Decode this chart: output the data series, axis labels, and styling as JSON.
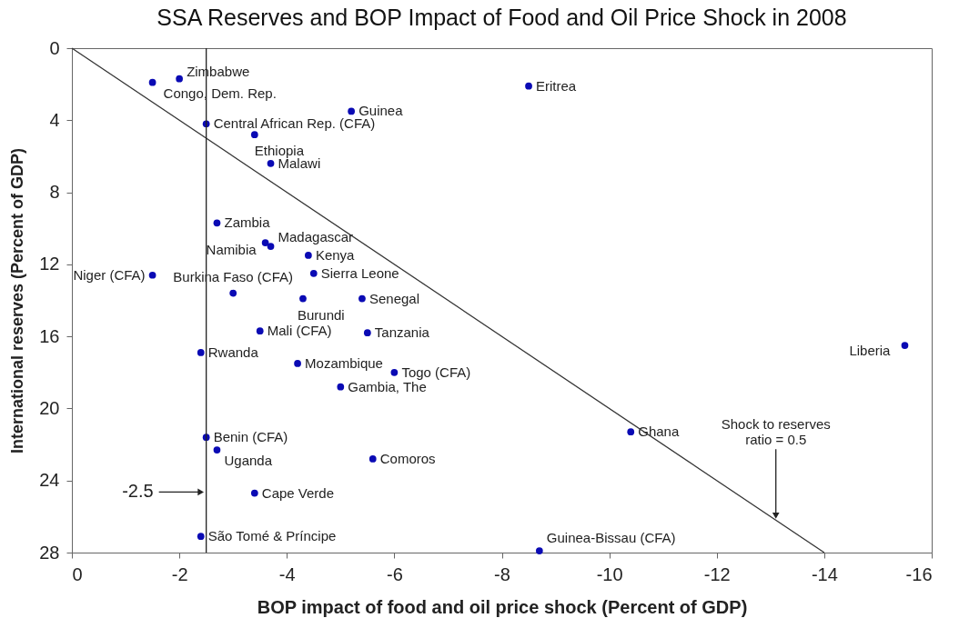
{
  "chart_data": {
    "type": "scatter",
    "title": "SSA Reserves and BOP Impact of Food and Oil Price Shock in 2008",
    "xlabel": "BOP impact of food and oil price shock (Percent of GDP)",
    "ylabel": "International reserves (Percent of GDP)",
    "xlim": [
      0,
      -16
    ],
    "xticks": [
      0,
      -2,
      -4,
      -6,
      -8,
      -10,
      -12,
      -14,
      -16
    ],
    "ylim": [
      28,
      0
    ],
    "yticks": [
      0,
      4,
      8,
      12,
      16,
      20,
      24,
      28
    ],
    "grid": false,
    "series": [
      {
        "type": "scatter",
        "marker": "circle",
        "color": "#0a0ab4",
        "x": [
          -2.0,
          -1.5,
          -8.5,
          -5.2,
          -2.5,
          -3.4,
          -3.7,
          -2.7,
          -3.7,
          -3.6,
          -4.4,
          -1.5,
          -3.0,
          -4.5,
          -4.3,
          -5.4,
          -3.5,
          -5.5,
          -2.4,
          -4.2,
          -6.0,
          -5.0,
          -2.5,
          -2.7,
          -5.6,
          -3.4,
          -2.4,
          -10.4,
          -15.5,
          -8.7
        ],
        "values": [
          1.7,
          1.9,
          2.1,
          3.5,
          4.2,
          4.8,
          6.4,
          9.7,
          11.0,
          10.8,
          11.5,
          12.6,
          13.6,
          12.5,
          13.9,
          13.9,
          15.7,
          15.8,
          16.9,
          17.5,
          18.0,
          18.8,
          21.6,
          22.3,
          22.8,
          24.7,
          27.1,
          21.3,
          16.5,
          27.9
        ],
        "value_labels": [
          "Zimbabwe",
          "Congo, Dem. Rep.",
          "Eritrea",
          "Guinea",
          "Central African Rep. (CFA)",
          "Ethiopia",
          "Malawi",
          "Zambia",
          "Madagascar",
          "Namibia",
          "Kenya",
          "Niger (CFA)",
          "Burkina Faso (CFA)",
          "Sierra Leone",
          "Burundi",
          "Senegal",
          "Mali (CFA)",
          "Tanzania",
          "Rwanda",
          "Mozambique",
          "Togo (CFA)",
          "Gambia, The",
          "Benin (CFA)",
          "Uganda",
          "Comoros",
          "Cape Verde",
          "São Tomé & Príncipe",
          "Ghana",
          "Liberia",
          "Guinea-Bissau (CFA)"
        ]
      },
      {
        "type": "line",
        "color": "#333333",
        "x": [
          0,
          -14
        ],
        "values": [
          0,
          28
        ]
      }
    ],
    "ref_lines": [
      {
        "axis": "x",
        "value": -2.5,
        "label": "-2.5"
      }
    ],
    "annotations": [
      {
        "text": "Shock to reserves ratio = 0.5",
        "x": -13.1,
        "y": 26.2
      }
    ]
  }
}
